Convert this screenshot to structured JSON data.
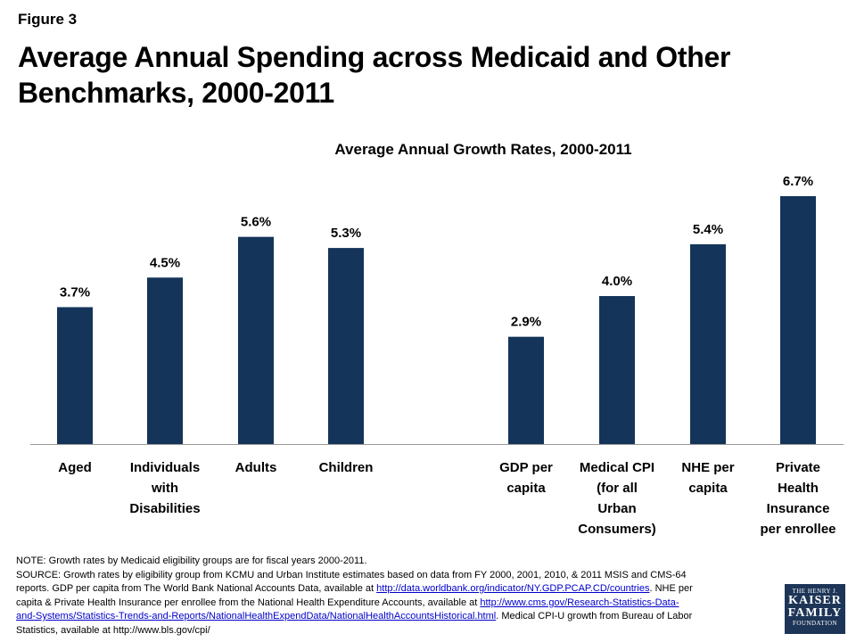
{
  "figure_label": "Figure 3",
  "title": "Average Annual Spending across Medicaid and Other Benchmarks, 2000-2011",
  "chart_data": {
    "type": "bar",
    "title": "Average Annual Growth Rates, 2000-2011",
    "categories": [
      [
        "Aged"
      ],
      [
        "Individuals",
        "with",
        "Disabilities"
      ],
      [
        "Adults"
      ],
      [
        "Children"
      ],
      [
        "GDP per",
        "capita"
      ],
      [
        "Medical CPI",
        "(for all",
        "Urban",
        "Consumers)"
      ],
      [
        "NHE per",
        "capita"
      ],
      [
        "Private",
        "Health",
        "Insurance",
        "per enrollee"
      ]
    ],
    "values": [
      3.7,
      4.5,
      5.6,
      5.3,
      2.9,
      4.0,
      5.4,
      6.7
    ],
    "value_labels": [
      "3.7%",
      "4.5%",
      "5.6%",
      "5.3%",
      "2.9%",
      "4.0%",
      "5.4%",
      "6.7%"
    ],
    "ylim": [
      0,
      6.7
    ],
    "grid": false,
    "bar_color": "#14345a"
  },
  "notes": {
    "line1": "NOTE: Growth rates by Medicaid eligibility groups are for fiscal years 2000-2011.",
    "line2": "SOURCE: Growth rates by eligibility group from KCMU and Urban Institute estimates  based on data from FY 2000, 2001, 2010, & 2011 MSIS and CMS-64",
    "line3_pre": "reports. GDP per capita from The World Bank National Accounts Data, available at ",
    "link1": "http://data.worldbank.org/indicator/NY.GDP.PCAP.CD/countries",
    "line3_post": ".   NHE per",
    "line4_pre": "capita & Private Health Insurance per enrollee from the National Health Expenditure Accounts, available at ",
    "link2a": "http://www.cms.gov/Research-Statistics-Data-",
    "link2b": "and-Systems/Statistics-Trends-and-Reports/NationalHealthExpendData/NationalHealthAccountsHistorical.html",
    "line5_post": ".  Medical CPI-U growth from Bureau of Labor",
    "line6": "Statistics, available at http://www.bls.gov/cpi/"
  },
  "logo": {
    "line1": "THE HENRY J.",
    "line2a": "KAISER",
    "line2b": "FAMILY",
    "line3": "FOUNDATION"
  }
}
